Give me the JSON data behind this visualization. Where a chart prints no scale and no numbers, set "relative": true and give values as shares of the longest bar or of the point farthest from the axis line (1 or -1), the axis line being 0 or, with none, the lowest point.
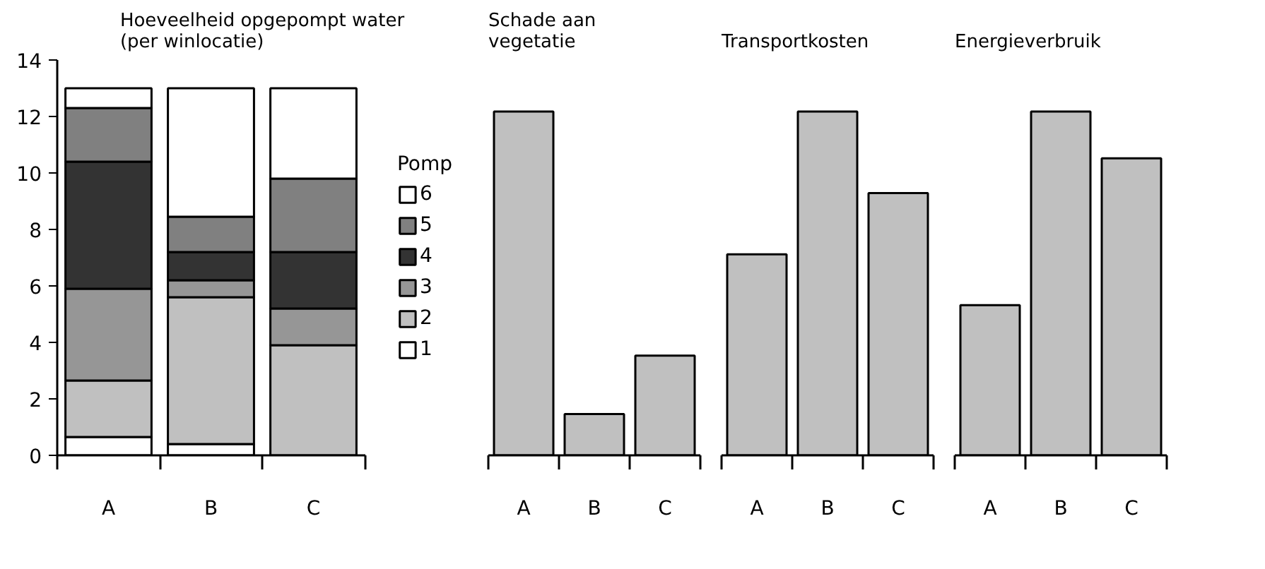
{
  "chart_data": [
    {
      "type": "bar",
      "title": "Hoeveelheid opgepompt water\n(per winlocatie)",
      "categories": [
        "A",
        "B",
        "C"
      ],
      "stacked": true,
      "legend_title": "Pomp",
      "legend": "right",
      "grid": false,
      "ylim": [
        0,
        14
      ],
      "yticks": [
        0,
        2,
        4,
        6,
        8,
        10,
        12,
        14
      ],
      "series": [
        {
          "name": "1",
          "color": "#ffffff",
          "values": [
            0.65,
            0.4,
            0
          ]
        },
        {
          "name": "2",
          "color": "#c0c0c0",
          "values": [
            2.0,
            5.2,
            3.9
          ]
        },
        {
          "name": "3",
          "color": "#969696",
          "values": [
            3.25,
            0.6,
            1.3
          ]
        },
        {
          "name": "4",
          "color": "#333333",
          "values": [
            4.5,
            1.0,
            2.0
          ]
        },
        {
          "name": "5",
          "color": "#808080",
          "values": [
            1.9,
            1.25,
            2.6
          ]
        },
        {
          "name": "6",
          "color": "#ffffff",
          "values": [
            0.7,
            4.55,
            3.2
          ]
        }
      ]
    },
    {
      "type": "bar",
      "title": "Schade aan\nvegetatie",
      "categories": [
        "A",
        "B",
        "C"
      ],
      "relative": true,
      "grid": false,
      "series": [
        {
          "color": "#c0c0c0",
          "values": [
            1,
            0.12,
            0.29
          ]
        }
      ]
    },
    {
      "type": "bar",
      "title": "Transportkosten",
      "categories": [
        "A",
        "B",
        "C"
      ],
      "relative": true,
      "grid": false,
      "series": [
        {
          "color": "#c0c0c0",
          "values": [
            0.585,
            1,
            0.763
          ]
        }
      ]
    },
    {
      "type": "bar",
      "title": "Energieverbruik",
      "categories": [
        "A",
        "B",
        "C"
      ],
      "relative": true,
      "grid": false,
      "series": [
        {
          "color": "#c0c0c0",
          "values": [
            0.437,
            1,
            0.864
          ]
        }
      ]
    }
  ]
}
